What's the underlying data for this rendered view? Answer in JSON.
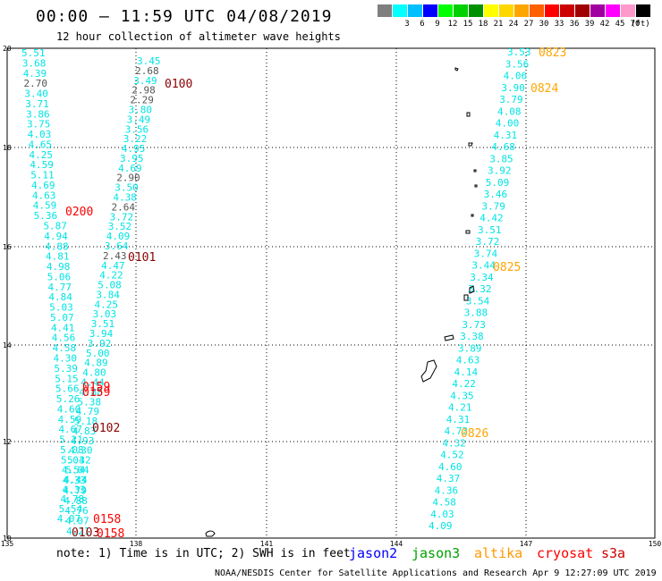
{
  "title": "00:00 – 11:59 UTC 04/08/2019",
  "subtitle": "12 hour collection of altimeter wave heights",
  "scale": {
    "unit": "(ft)",
    "bins": [
      {
        "label": "",
        "color": "#7f7f7f"
      },
      {
        "label": "3",
        "color": "#00ffff"
      },
      {
        "label": "6",
        "color": "#00bfff"
      },
      {
        "label": "9",
        "color": "#0000ff"
      },
      {
        "label": "12",
        "color": "#00ff00"
      },
      {
        "label": "15",
        "color": "#00d000"
      },
      {
        "label": "18",
        "color": "#009000"
      },
      {
        "label": "21",
        "color": "#ffff00"
      },
      {
        "label": "24",
        "color": "#ffd700"
      },
      {
        "label": "27",
        "color": "#ffa500"
      },
      {
        "label": "30",
        "color": "#ff6000"
      },
      {
        "label": "33",
        "color": "#ff0000"
      },
      {
        "label": "36",
        "color": "#cc0000"
      },
      {
        "label": "39",
        "color": "#a00000"
      },
      {
        "label": "42",
        "color": "#a000a0"
      },
      {
        "label": "45",
        "color": "#ff00ff"
      },
      {
        "label": "70",
        "color": "#ff99cc"
      },
      {
        "label": "",
        "color": "#000000"
      }
    ]
  },
  "axes": {
    "lon_ticks": [
      "135",
      "138",
      "141",
      "144",
      "147",
      "150"
    ],
    "lat_ticks": [
      "20",
      "18",
      "16",
      "14",
      "12",
      "10"
    ]
  },
  "colors": {
    "cyan": "#00e4e4",
    "gray": "#555555",
    "darkred": "#8b0000",
    "red": "#ff0000",
    "orange": "#ffa500"
  },
  "track_left_a": [
    "5.51",
    "3.68",
    "4.39",
    "2.70",
    "3.40",
    "3.71",
    "3.86",
    "3.75",
    "4.03",
    "4.65",
    "4.25",
    "4.59",
    "5.11",
    "4.69",
    "4.63",
    "4.59",
    "5.36",
    "5.87",
    "4.94",
    "4.88",
    "4.81",
    "4.98",
    "5.06",
    "4.77",
    "4.84",
    "5.03",
    "5.07",
    "4.41",
    "4.56",
    "4.58",
    "4.30",
    "5.39",
    "5.15",
    "5.66",
    "5.26",
    "4.60",
    "4.59",
    "4.67",
    "5.21",
    "5.08",
    "5.04",
    "4.54",
    "4.33",
    "4.79",
    "4.88",
    "4.76",
    "4.07",
    "4.21"
  ],
  "track_left_a_gray": [
    "2.70"
  ],
  "track_left_b": [
    "3.45",
    "2.68",
    "3.49",
    "2.98",
    "2.29",
    "3.80",
    "3.49",
    "3.56",
    "3.22",
    "4.95",
    "3.95",
    "4.69",
    "2.90",
    "3.50",
    "4.38",
    "2.64",
    "3.72",
    "3.52",
    "4.09",
    "3.64",
    "2.43",
    "4.47",
    "4.22",
    "5.08",
    "3.84",
    "4.25",
    "3.03",
    "3.51",
    "3.94",
    "3.92",
    "5.00",
    "4.89",
    "4.80",
    "4.44",
    "4.88",
    "5.38",
    "4.79",
    "5.18",
    "4.83",
    "4.93",
    "4.30",
    "5.32",
    "5.04",
    "4.44",
    "4.33",
    "4.78",
    "5.54",
    "4.07"
  ],
  "track_left_b_gray": [
    "2.68",
    "2.98",
    "2.29",
    "2.90",
    "2.64",
    "2.43"
  ],
  "track_right": [
    "3.53",
    "3.56",
    "4.06",
    "3.90",
    "3.79",
    "4.08",
    "4.00",
    "4.31",
    "4.68",
    "3.85",
    "3.92",
    "5.09",
    "3.46",
    "3.79",
    "4.42",
    "3.51",
    "3.72",
    "3.74",
    "3.44",
    "3.34",
    "3.32",
    "3.54",
    "3.88",
    "3.73",
    "3.38",
    "3.89",
    "4.63",
    "4.14",
    "4.22",
    "4.35",
    "4.21",
    "4.31",
    "4.73",
    "4.32",
    "4.52",
    "4.60",
    "4.37",
    "4.36",
    "4.58",
    "4.03",
    "4.09"
  ],
  "time_labels": [
    {
      "text": "0100",
      "color": "darkred"
    },
    {
      "text": "0200",
      "color": "red"
    },
    {
      "text": "0101",
      "color": "darkred"
    },
    {
      "text": "0159",
      "color": "red"
    },
    {
      "text": "0159",
      "color": "red"
    },
    {
      "text": "0102",
      "color": "darkred"
    },
    {
      "text": "0158",
      "color": "red"
    },
    {
      "text": "0103",
      "color": "darkred"
    },
    {
      "text": "0158",
      "color": "red"
    },
    {
      "text": "0823",
      "color": "orange"
    },
    {
      "text": "0824",
      "color": "orange"
    },
    {
      "text": "0825",
      "color": "orange"
    },
    {
      "text": "0826",
      "color": "orange"
    }
  ],
  "note": "note: 1) Time is in UTC; 2) SWH is in feet",
  "satellites": [
    {
      "name": "jason2",
      "color": "#0000ff"
    },
    {
      "name": "jason3",
      "color": "#00a000"
    },
    {
      "name": "altika",
      "color": "#ff9900"
    },
    {
      "name": "cryosat",
      "color": "#ff0000"
    },
    {
      "name": "s3a",
      "color": "#cc0000"
    }
  ],
  "credit": "NOAA/NESDIS Center for Satellite Applications and Research   Apr  9 12:27:09 UTC 2019"
}
